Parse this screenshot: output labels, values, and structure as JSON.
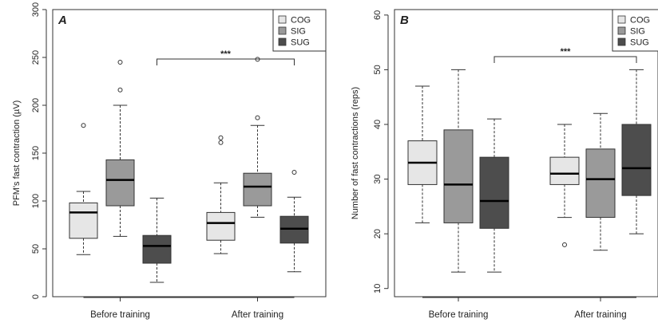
{
  "chart_data": [
    {
      "type": "box",
      "panel_label": "A",
      "ylabel": "PFM's fast contraction (µV)",
      "ylim": [
        0,
        300
      ],
      "yticks": [
        0,
        50,
        100,
        150,
        200,
        250,
        300
      ],
      "categories": [
        "Before training",
        "After training"
      ],
      "legend": {
        "position": "top-right"
      },
      "significance": {
        "label": "***",
        "from_group": "SUG",
        "from_category": "Before training",
        "to_group": "SUG",
        "to_category": "After training"
      },
      "series": [
        {
          "name": "COG",
          "color": "#e6e6e6",
          "boxes": [
            {
              "min": 44,
              "q1": 61,
              "median": 88,
              "q3": 98,
              "max": 110,
              "outliers": [
                179
              ]
            },
            {
              "min": 45,
              "q1": 59,
              "median": 77,
              "q3": 88,
              "max": 119,
              "outliers": [
                161,
                166
              ]
            }
          ]
        },
        {
          "name": "SIG",
          "color": "#9a9a9a",
          "boxes": [
            {
              "min": 63,
              "q1": 95,
              "median": 122,
              "q3": 143,
              "max": 200,
              "outliers": [
                216,
                245
              ]
            },
            {
              "min": 83,
              "q1": 95,
              "median": 115,
              "q3": 129,
              "max": 179,
              "outliers": [
                187,
                248
              ]
            }
          ]
        },
        {
          "name": "SUG",
          "color": "#4d4d4d",
          "boxes": [
            {
              "min": 15,
              "q1": 35,
              "median": 53,
              "q3": 64,
              "max": 103,
              "outliers": []
            },
            {
              "min": 26,
              "q1": 56,
              "median": 71,
              "q3": 84,
              "max": 104,
              "outliers": [
                130
              ]
            }
          ]
        }
      ]
    },
    {
      "type": "box",
      "panel_label": "B",
      "ylabel": "Number of fast contractions (reps)",
      "ylim": [
        8.5,
        61
      ],
      "yticks": [
        10,
        20,
        30,
        40,
        50,
        60
      ],
      "categories": [
        "Before training",
        "After training"
      ],
      "legend": {
        "position": "top-right"
      },
      "significance": {
        "label": "***",
        "from_group": "SUG",
        "from_category": "Before training",
        "to_group": "SUG",
        "to_category": "After training"
      },
      "series": [
        {
          "name": "COG",
          "color": "#e6e6e6",
          "boxes": [
            {
              "min": 22,
              "q1": 29,
              "median": 33,
              "q3": 37,
              "max": 47,
              "outliers": []
            },
            {
              "min": 23,
              "q1": 29,
              "median": 31,
              "q3": 34,
              "max": 40,
              "outliers": [
                18
              ]
            }
          ]
        },
        {
          "name": "SIG",
          "color": "#9a9a9a",
          "boxes": [
            {
              "min": 13,
              "q1": 22,
              "median": 29,
              "q3": 39,
              "max": 50,
              "outliers": []
            },
            {
              "min": 17,
              "q1": 23,
              "median": 30,
              "q3": 35.5,
              "max": 42,
              "outliers": []
            }
          ]
        },
        {
          "name": "SUG",
          "color": "#4d4d4d",
          "boxes": [
            {
              "min": 13,
              "q1": 21,
              "median": 26,
              "q3": 34,
              "max": 41,
              "outliers": []
            },
            {
              "min": 20,
              "q1": 27,
              "median": 32,
              "q3": 40,
              "max": 50,
              "outliers": []
            }
          ]
        }
      ]
    }
  ]
}
